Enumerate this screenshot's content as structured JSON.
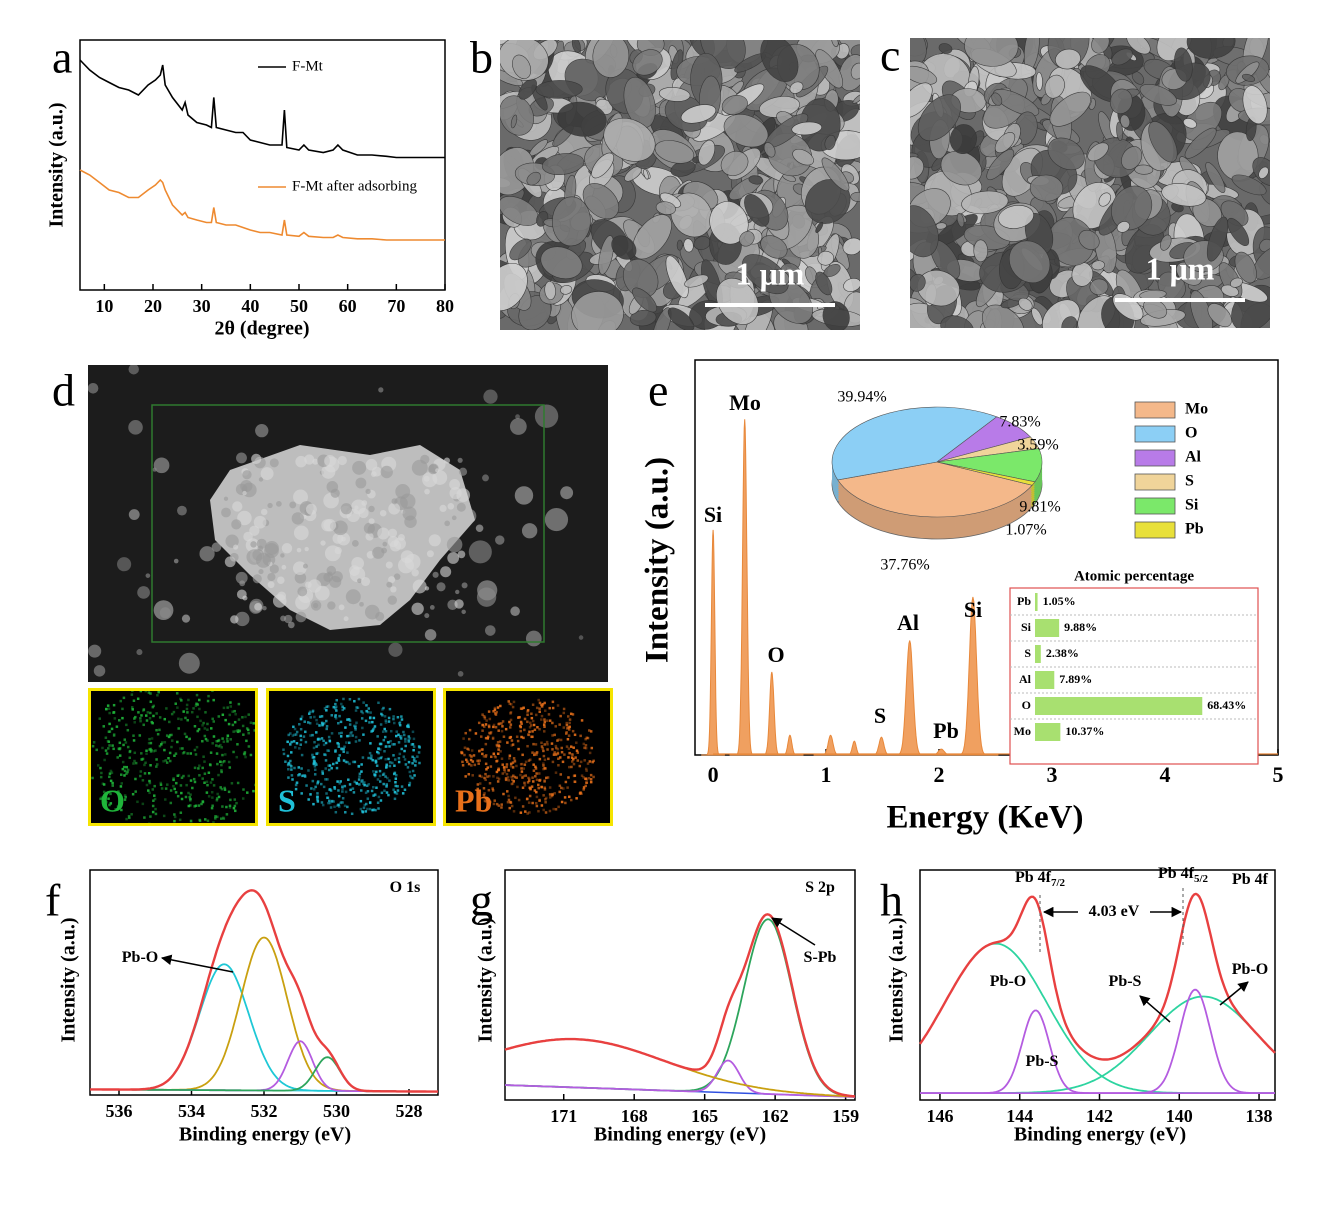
{
  "chart_data": [
    {
      "type": "line",
      "panel_label": "a",
      "x_label": "2θ (degree)",
      "y_label": "Intensity (a.u.)",
      "xlim": [
        5,
        80
      ],
      "xticks": [
        10,
        20,
        30,
        40,
        50,
        60,
        70,
        80
      ],
      "ylim": [
        0,
        100
      ],
      "x": [
        5,
        7,
        9,
        11,
        13,
        15,
        17,
        19,
        20.5,
        21.5,
        22,
        22.5,
        24,
        26,
        26.6,
        27.2,
        29,
        31,
        32,
        32.5,
        33,
        35,
        37,
        38.5,
        40,
        42,
        44,
        46.5,
        47,
        47.5,
        50,
        51,
        52,
        55,
        57,
        58,
        59,
        62,
        65,
        68,
        70,
        75,
        80
      ],
      "series": [
        {
          "name": "F-Mt",
          "color": "#000000",
          "values": [
            92,
            88,
            85,
            83,
            81,
            80,
            78,
            82,
            84,
            86,
            90,
            82,
            77,
            72,
            75,
            70,
            67,
            66,
            65,
            77,
            65,
            64,
            63,
            63,
            60,
            59,
            58,
            58,
            72,
            57,
            56,
            58,
            56,
            55,
            56,
            58,
            56,
            54,
            54,
            53.5,
            53,
            53,
            53
          ]
        },
        {
          "name": "F-Mt after adsorbing",
          "color": "#ee8a30",
          "values": [
            48,
            46,
            43,
            40,
            39,
            37,
            37,
            40,
            42,
            44,
            43,
            40,
            34,
            30,
            31,
            29,
            28,
            27,
            27,
            33,
            27,
            26,
            26,
            25,
            24,
            23,
            23,
            22,
            28,
            22,
            21.5,
            23,
            21.5,
            21,
            21,
            22,
            21,
            20.5,
            20.5,
            20,
            20,
            20,
            20
          ]
        }
      ]
    },
    {
      "type": "image",
      "panel_label": "b",
      "scale_bar": "1 μm"
    },
    {
      "type": "image",
      "panel_label": "c",
      "scale_bar": "1 μm"
    },
    {
      "type": "image",
      "panel_label": "d",
      "maps": [
        "O",
        "S",
        "Pb"
      ]
    },
    {
      "type": "spectrum",
      "panel_label": "e",
      "x_label": "Energy (KeV)",
      "y_label": "Intensity (a.u.)",
      "xlim": [
        -0.16,
        5
      ],
      "xticks": [
        0,
        1,
        2,
        3,
        4,
        5
      ],
      "ylim": [
        0,
        100
      ],
      "color": "#f0a060",
      "peaks": {
        "center": [
          0,
          0.28,
          0.52,
          0.68,
          1.04,
          1.25,
          1.49,
          1.74,
          2.02,
          2.3
        ],
        "height": [
          57,
          85,
          21,
          5,
          5,
          3.5,
          4.5,
          29,
          1.5,
          40
        ],
        "fwhm": [
          0.035,
          0.045,
          0.045,
          0.04,
          0.05,
          0.04,
          0.05,
          0.07,
          0.06,
          0.075
        ]
      },
      "annotations": [
        "Si",
        "Mo",
        "O",
        "S",
        "Al",
        "Pb",
        "Si"
      ]
    },
    {
      "type": "pie",
      "categories": [
        "Mo",
        "O",
        "Al",
        "S",
        "Si",
        "Pb"
      ],
      "colors": [
        "#f4b88a",
        "#8ccff5",
        "#b87be8",
        "#f0d49a",
        "#7be86a",
        "#e8e03a"
      ],
      "values": [
        37.76,
        39.94,
        7.83,
        3.59,
        9.81,
        1.07
      ],
      "value_labels": [
        "37.76%",
        "39.94%",
        "7.83%",
        "3.59%",
        "9.81%",
        "1.07%"
      ]
    },
    {
      "type": "bar",
      "title": "Atomic percentage",
      "categories": [
        "Pb",
        "Si",
        "S",
        "Al",
        "O",
        "Mo"
      ],
      "values": [
        1.05,
        9.88,
        2.38,
        7.89,
        68.43,
        10.37
      ],
      "value_labels": [
        "1.05%",
        "9.88%",
        "2.38%",
        "7.89%",
        "68.43%",
        "10.37%"
      ],
      "xlim": [
        0,
        90
      ],
      "color": "#a8e070"
    },
    {
      "type": "peaks",
      "panel_label": "f",
      "x_label": "Binding energy (eV)",
      "y_label": "Intensity (a.u.)",
      "xlim": [
        536.8,
        527.2
      ],
      "xticks": [
        536,
        534,
        532,
        530,
        528
      ],
      "ylim": [
        0,
        100
      ],
      "background": [
        2.5,
        1.5
      ],
      "background_color": "#40c8d8",
      "fit_color": "#e84040",
      "components": {
        "center": [
          533.1,
          532.0,
          531.0,
          530.25
        ],
        "height": [
          56,
          68,
          22,
          15
        ],
        "fwhm": [
          1.6,
          1.5,
          0.8,
          0.8
        ],
        "color": [
          "#1fc8d6",
          "#c9a010",
          "#b45ce0",
          "#2da55c"
        ]
      },
      "annotations": [
        {
          "text": "O 1s"
        },
        {
          "text": "Pb-O"
        }
      ]
    },
    {
      "type": "peaks",
      "panel_label": "g",
      "x_label": "Binding energy (eV)",
      "y_label": "Intensity (a.u.)",
      "xlim": [
        173.5,
        158.6
      ],
      "xticks": [
        171,
        168,
        165,
        162,
        159
      ],
      "ylim": [
        0,
        100
      ],
      "background": [
        6.5,
        1.3
      ],
      "background_color": "#3050e0",
      "fit_color": "#e84040",
      "components": {
        "center": [
          162.3,
          164.0,
          170.5
        ],
        "height": [
          76,
          14,
          21
        ],
        "fwhm": [
          2.4,
          1.1,
          9
        ],
        "color": [
          "#2da55c",
          "#b45ce0",
          "#c9a010"
        ]
      },
      "annotations": [
        {
          "text": "S 2p"
        },
        {
          "text": "S-Pb"
        }
      ]
    },
    {
      "type": "peaks",
      "panel_label": "h",
      "x_label": "Binding energy (eV)",
      "y_label": "Intensity (a.u.)",
      "xlim": [
        146.5,
        137.6
      ],
      "xticks": [
        146,
        144,
        142,
        140,
        138
      ],
      "ylim": [
        0,
        100
      ],
      "background": [
        3,
        3
      ],
      "background_color": "#b45ce0",
      "fit_color": "#e84040",
      "components": {
        "center": [
          144.6,
          139.4,
          143.6,
          139.6
        ],
        "height": [
          65,
          42,
          36,
          45
        ],
        "fwhm": [
          3.0,
          3.2,
          0.8,
          0.9
        ],
        "color": [
          "#2dd4a0",
          "#2dd4a0",
          "#b45ce0",
          "#b45ce0"
        ]
      },
      "annotations": [
        {
          "text": "Pb 4f"
        },
        {
          "text": "Pb 4f",
          "sub": "7/2"
        },
        {
          "text": "Pb 4f",
          "sub": "5/2"
        },
        {
          "text": "4.03 eV"
        },
        {
          "text": "Pb-O"
        },
        {
          "text": "Pb-O"
        },
        {
          "text": "Pb-S"
        },
        {
          "text": "Pb-S"
        }
      ]
    }
  ]
}
